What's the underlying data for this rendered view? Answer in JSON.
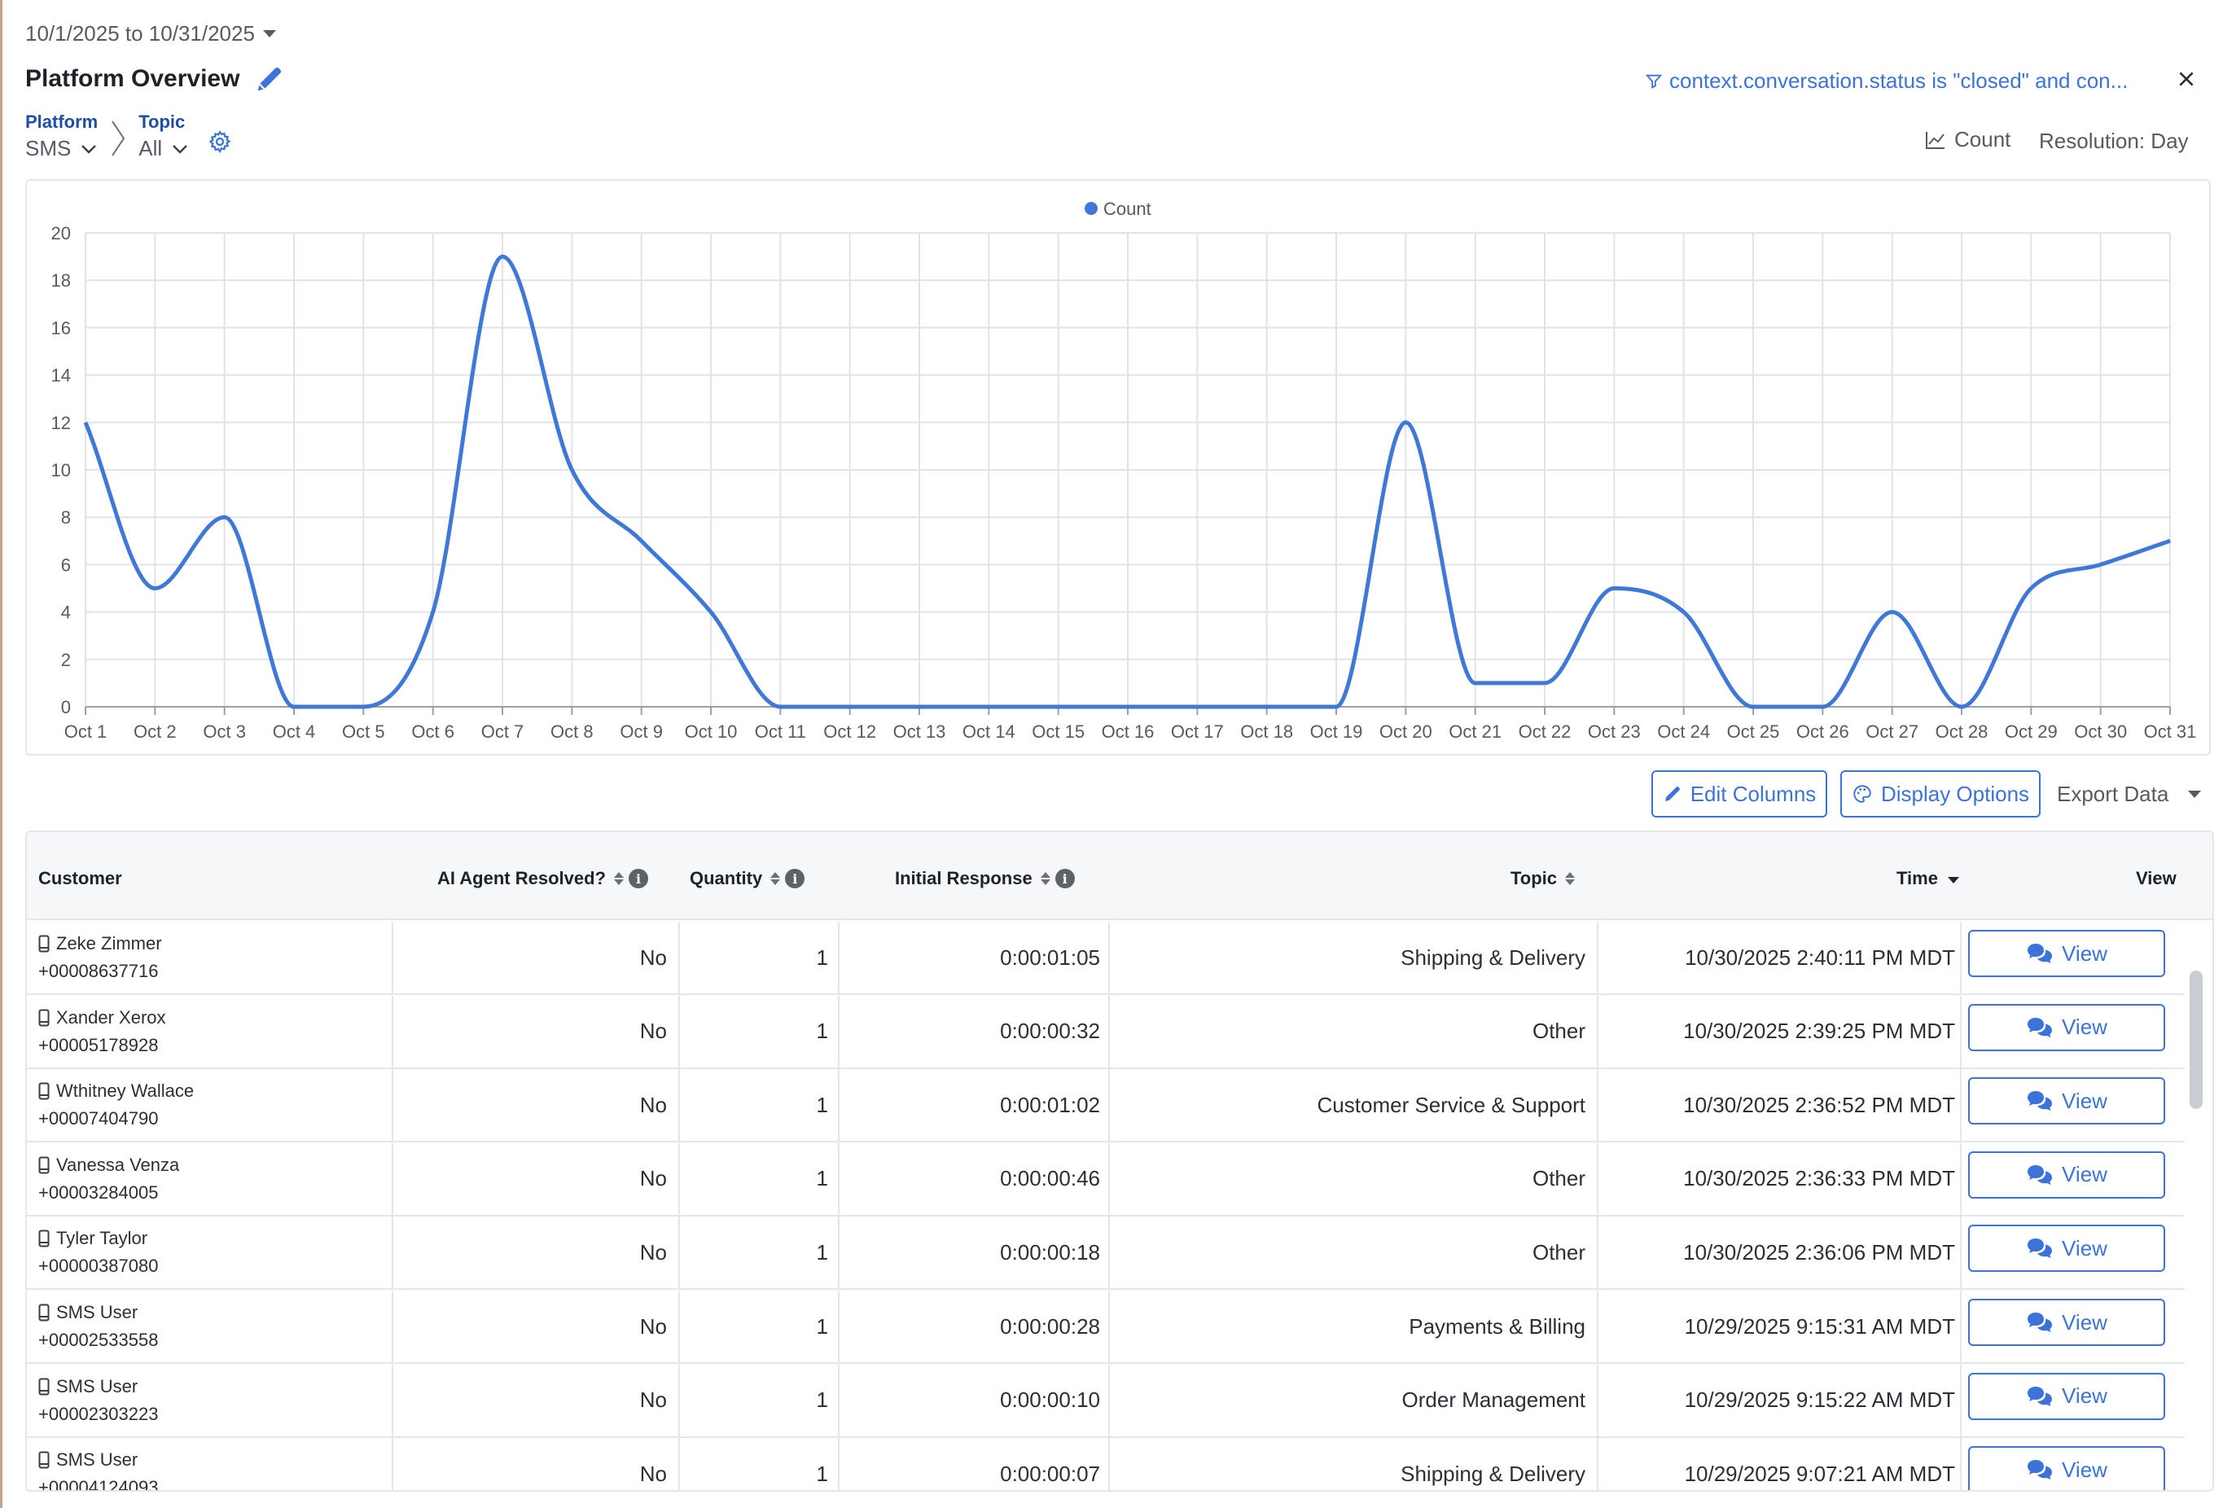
{
  "date_range": "10/1/2025 to 10/31/2025",
  "page_title": "Platform Overview",
  "filter_text": "context.conversation.status is \"closed\" and con...",
  "breadcrumb": {
    "platform_label": "Platform",
    "platform_value": "SMS",
    "topic_label": "Topic",
    "topic_value": "All"
  },
  "metric_label": "Count",
  "resolution_label": "Resolution: Day",
  "colors": {
    "accent": "#3b73d9",
    "line": "#3f78d6",
    "grid": "#e1e3e6"
  },
  "chart_data": {
    "type": "line",
    "legend": [
      "Count"
    ],
    "x": [
      "Oct 1",
      "Oct 2",
      "Oct 3",
      "Oct 4",
      "Oct 5",
      "Oct 6",
      "Oct 7",
      "Oct 8",
      "Oct 9",
      "Oct 10",
      "Oct 11",
      "Oct 12",
      "Oct 13",
      "Oct 14",
      "Oct 15",
      "Oct 16",
      "Oct 17",
      "Oct 18",
      "Oct 19",
      "Oct 20",
      "Oct 21",
      "Oct 22",
      "Oct 23",
      "Oct 24",
      "Oct 25",
      "Oct 26",
      "Oct 27",
      "Oct 28",
      "Oct 29",
      "Oct 30",
      "Oct 31"
    ],
    "series": [
      {
        "name": "Count",
        "values": [
          12,
          5,
          8,
          0,
          0,
          4,
          19,
          10,
          7,
          4,
          0,
          0,
          0,
          0,
          0,
          0,
          0,
          0,
          0,
          12,
          1,
          1,
          5,
          4,
          0,
          0,
          4,
          0,
          5,
          6,
          7
        ]
      }
    ],
    "ylim": [
      0,
      20
    ],
    "yticks": [
      0,
      2,
      4,
      6,
      8,
      10,
      12,
      14,
      16,
      18,
      20
    ],
    "grid": true,
    "legend_position": "top-center"
  },
  "toolbar": {
    "edit_columns": "Edit Columns",
    "display_options": "Display Options",
    "export_data": "Export Data"
  },
  "table": {
    "headers": {
      "customer": "Customer",
      "ai_resolved": "AI Agent Resolved?",
      "quantity": "Quantity",
      "initial_response": "Initial Response",
      "topic": "Topic",
      "time": "Time",
      "view": "View"
    },
    "view_label": "View",
    "rows": [
      {
        "name": "Zeke Zimmer",
        "phone": "+00008637716",
        "resolved": "No",
        "qty": "1",
        "response": "0:00:01:05",
        "topic": "Shipping & Delivery",
        "time": "10/30/2025 2:40:11 PM MDT"
      },
      {
        "name": "Xander Xerox",
        "phone": "+00005178928",
        "resolved": "No",
        "qty": "1",
        "response": "0:00:00:32",
        "topic": "Other",
        "time": "10/30/2025 2:39:25 PM MDT"
      },
      {
        "name": "Wthitney Wallace",
        "phone": "+00007404790",
        "resolved": "No",
        "qty": "1",
        "response": "0:00:01:02",
        "topic": "Customer Service & Support",
        "time": "10/30/2025 2:36:52 PM MDT"
      },
      {
        "name": "Vanessa Venza",
        "phone": "+00003284005",
        "resolved": "No",
        "qty": "1",
        "response": "0:00:00:46",
        "topic": "Other",
        "time": "10/30/2025 2:36:33 PM MDT"
      },
      {
        "name": "Tyler Taylor",
        "phone": "+00000387080",
        "resolved": "No",
        "qty": "1",
        "response": "0:00:00:18",
        "topic": "Other",
        "time": "10/30/2025 2:36:06 PM MDT"
      },
      {
        "name": "SMS User",
        "phone": "+00002533558",
        "resolved": "No",
        "qty": "1",
        "response": "0:00:00:28",
        "topic": "Payments & Billing",
        "time": "10/29/2025 9:15:31 AM MDT"
      },
      {
        "name": "SMS User",
        "phone": "+00002303223",
        "resolved": "No",
        "qty": "1",
        "response": "0:00:00:10",
        "topic": "Order Management",
        "time": "10/29/2025 9:15:22 AM MDT"
      },
      {
        "name": "SMS User",
        "phone": "+00004124093",
        "resolved": "No",
        "qty": "1",
        "response": "0:00:00:07",
        "topic": "Shipping & Delivery",
        "time": "10/29/2025 9:07:21 AM MDT"
      }
    ]
  }
}
